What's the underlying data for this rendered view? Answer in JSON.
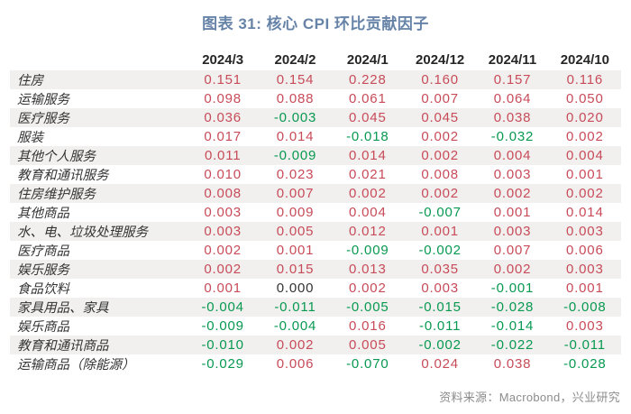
{
  "title": "图表 31: 核心 CPI 环比贡献因子",
  "source": "资料来源：Macrobond，兴业研究",
  "colors": {
    "title": "#6784A8",
    "positive_value": "#C84B59",
    "negative_value": "#089951",
    "zero_value": "#333333",
    "stripe_row": "#F1F0EE",
    "header_text": "#262626",
    "source_text": "#8C8C8C"
  },
  "chart_data": {
    "type": "table",
    "title": "图表 31: 核心 CPI 环比贡献因子",
    "columns": [
      "2024/3",
      "2024/2",
      "2024/1",
      "2024/12",
      "2024/11",
      "2024/10"
    ],
    "rows": [
      {
        "label": "住房",
        "values": [
          0.151,
          0.154,
          0.228,
          0.16,
          0.157,
          0.116
        ]
      },
      {
        "label": "运输服务",
        "values": [
          0.098,
          0.088,
          0.061,
          0.007,
          0.064,
          0.05
        ]
      },
      {
        "label": "医疗服务",
        "values": [
          0.036,
          -0.003,
          0.045,
          0.045,
          0.038,
          0.02
        ]
      },
      {
        "label": "服装",
        "values": [
          0.017,
          0.014,
          -0.018,
          0.002,
          -0.032,
          0.002
        ]
      },
      {
        "label": "其他个人服务",
        "values": [
          0.011,
          -0.009,
          0.014,
          0.002,
          0.004,
          0.004
        ]
      },
      {
        "label": "教育和通讯服务",
        "values": [
          0.01,
          0.023,
          0.021,
          0.008,
          0.003,
          0.001
        ]
      },
      {
        "label": "住房维护服务",
        "values": [
          0.008,
          0.007,
          0.002,
          0.002,
          0.002,
          0.002
        ]
      },
      {
        "label": "其他商品",
        "values": [
          0.003,
          0.009,
          0.004,
          -0.007,
          0.001,
          0.014
        ]
      },
      {
        "label": "水、电、垃圾处理服务",
        "values": [
          0.003,
          0.005,
          0.012,
          0.001,
          0.003,
          0.003
        ]
      },
      {
        "label": "医疗商品",
        "values": [
          0.002,
          0.001,
          -0.009,
          -0.002,
          0.007,
          0.006
        ]
      },
      {
        "label": "娱乐服务",
        "values": [
          0.002,
          0.015,
          0.013,
          0.035,
          0.002,
          0.003
        ]
      },
      {
        "label": "食品饮料",
        "values": [
          0.001,
          0.0,
          0.002,
          0.003,
          -0.001,
          0.001
        ]
      },
      {
        "label": "家具用品、家具",
        "values": [
          -0.004,
          -0.011,
          -0.005,
          -0.015,
          -0.028,
          -0.008
        ]
      },
      {
        "label": "娱乐商品",
        "values": [
          -0.009,
          -0.004,
          0.016,
          -0.011,
          -0.014,
          0.003
        ]
      },
      {
        "label": "教育和通讯商品",
        "values": [
          -0.01,
          0.002,
          0.005,
          -0.002,
          -0.022,
          -0.011
        ]
      },
      {
        "label": "运输商品（除能源）",
        "values": [
          -0.029,
          0.006,
          -0.07,
          0.024,
          0.038,
          -0.028
        ]
      }
    ],
    "value_format": "3-decimal",
    "color_rule": "positive=red, negative=green, zero=black",
    "layout": {
      "striped_rows": "odd",
      "first_column": "category labels",
      "data_alignment": "center"
    }
  }
}
